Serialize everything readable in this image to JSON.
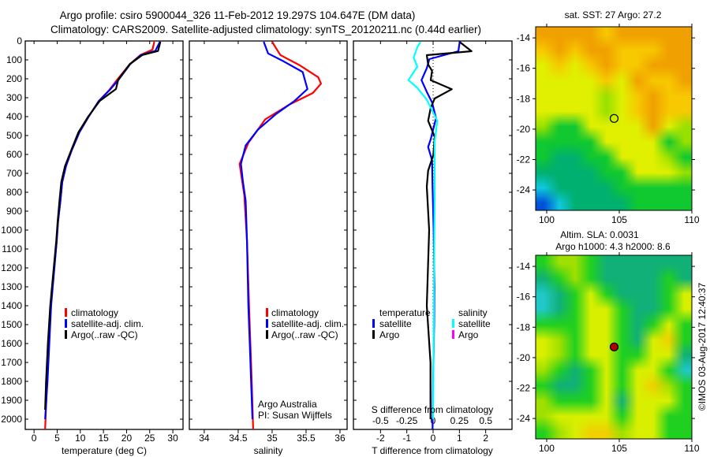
{
  "header": {
    "line1": "Argo profile: csiro 5900044_326 11-Feb-2012 19.297S 104.647E (DM data)",
    "line2": "Climatology: CARS2009. Satellite-adjusted climatology: synTS_20120211.nc (0.44d earlier)"
  },
  "chart_data": [
    {
      "type": "line",
      "id": "temperature",
      "xlabel": "temperature (deg C)",
      "ylabel": "",
      "xlim": [
        -1.9,
        32.2
      ],
      "ylim": [
        2054,
        0
      ],
      "xticks": [
        0,
        5,
        10,
        15,
        20,
        25,
        30
      ],
      "yticks": [
        0,
        100,
        200,
        300,
        400,
        500,
        600,
        700,
        800,
        900,
        1000,
        1100,
        1200,
        1300,
        1400,
        1500,
        1600,
        1700,
        1800,
        1900,
        2000
      ],
      "legend": [
        "climatology",
        "satellite-adj. clim.",
        "Argo(..raw -QC)"
      ],
      "series": [
        {
          "name": "climatology",
          "color": "#ff0000",
          "depth": [
            4,
            46,
            74,
            122,
            204,
            261,
            317,
            400,
            483,
            580,
            662,
            746,
            845,
            954,
            1058,
            1400,
            1600,
            1800,
            2054
          ],
          "values": [
            26.0,
            25.6,
            23.0,
            20.7,
            18.0,
            16.2,
            14.0,
            11.8,
            9.8,
            8.1,
            6.9,
            6.1,
            5.7,
            5.2,
            4.9,
            3.6,
            3.2,
            2.8,
            2.4
          ]
        },
        {
          "name": "satellite-adj. clim.",
          "color": "#0000ff",
          "depth": [
            4,
            53,
            74,
            122,
            204,
            261,
            317,
            400,
            483,
            580,
            662,
            746,
            845,
            954,
            1058,
            1400,
            1600,
            1800,
            2000
          ],
          "values": [
            27.2,
            26.2,
            23.1,
            20.8,
            18.3,
            16.3,
            14.0,
            11.8,
            9.8,
            8.1,
            6.9,
            6.1,
            5.7,
            5.2,
            4.9,
            3.7,
            3.3,
            2.9,
            2.4
          ]
        },
        {
          "name": "Argo(..raw -QC)",
          "color": "#000000",
          "depth": [
            4,
            53,
            74,
            122,
            204,
            254,
            317,
            400,
            483,
            580,
            662,
            746,
            845,
            954,
            1058,
            1400,
            1600,
            1800,
            1950
          ],
          "values": [
            27.3,
            26.8,
            23.4,
            20.7,
            18.2,
            17.7,
            14.2,
            11.7,
            9.6,
            8.0,
            6.7,
            5.9,
            5.5,
            5.1,
            4.8,
            3.5,
            3.0,
            2.6,
            2.4
          ]
        }
      ],
      "legend_position": "center-left"
    },
    {
      "type": "line",
      "id": "salinity",
      "xlabel": "salinity",
      "xlim": [
        33.78,
        36.105
      ],
      "ylim": [
        2054,
        0
      ],
      "xticks": [
        34,
        34.5,
        35,
        35.5,
        36
      ],
      "legend": [
        "climatology",
        "satellite-adj. clim.",
        "Argo(..raw -QC)"
      ],
      "annotation": [
        "Argo Australia",
        "PI: Susan Wijffels"
      ],
      "series": [
        {
          "name": "climatology",
          "color": "#ff0000",
          "depth": [
            4,
            74,
            129,
            192,
            226,
            275,
            337,
            414,
            539,
            650,
            817,
            1058,
            1400,
            1600,
            1800,
            2054
          ],
          "values": [
            35.0,
            35.12,
            35.41,
            35.68,
            35.72,
            35.6,
            35.25,
            34.9,
            34.65,
            34.52,
            34.59,
            34.63,
            34.66,
            34.68,
            34.7,
            34.72
          ]
        },
        {
          "name": "satellite-adj. clim.",
          "color": "#0000ff",
          "depth": [
            4,
            66,
            108,
            164,
            254,
            317,
            386,
            469,
            553,
            650,
            746,
            845,
            1058,
            1400,
            1600,
            1800,
            2000
          ],
          "values": [
            34.876,
            34.94,
            35.17,
            35.45,
            35.52,
            35.33,
            35.06,
            34.79,
            34.61,
            34.54,
            34.57,
            34.61,
            34.63,
            34.65,
            34.67,
            34.69,
            34.71
          ]
        }
      ]
    },
    {
      "type": "line",
      "id": "difference",
      "xlabel": "T difference from climatology",
      "xlabel2": "S difference from climatology",
      "xlim": [
        -3.03,
        3.0
      ],
      "ylim": [
        2054,
        0
      ],
      "xticks": [
        -2,
        -1,
        0,
        1,
        2
      ],
      "xticks2": [
        -0.5,
        -0.25,
        0,
        0.25,
        0.5
      ],
      "legend_temperature": {
        "title": "temperature",
        "items": [
          "satellite",
          "Argo"
        ]
      },
      "legend_salinity": {
        "title": "salinity",
        "items": [
          "satellite",
          "Argo"
        ]
      },
      "series": [
        {
          "name": "T satellite",
          "color": "#0000ff",
          "units": "T",
          "depth": [
            5,
            54,
            96,
            144,
            207,
            269,
            325,
            408,
            519,
            561,
            631,
            770,
            1000,
            1300,
            1500,
            1800,
            2054
          ],
          "values": [
            1.01,
            0.96,
            -0.14,
            -0.24,
            -0.44,
            -0.24,
            -0.04,
            0.11,
            -0.09,
            -0.19,
            -0.04,
            -0.02,
            0.02,
            0.05,
            0.04,
            0.0,
            -0.02
          ]
        },
        {
          "name": "T Argo",
          "color": "#000000",
          "units": "T",
          "depth": [
            5,
            54,
            75,
            124,
            158,
            207,
            255,
            304,
            353,
            422,
            506,
            603,
            686,
            770,
            1000,
            1400,
            1700,
            2000
          ],
          "values": [
            1.01,
            1.46,
            -0.24,
            -0.19,
            -0.04,
            -0.09,
            0.71,
            0.06,
            -0.09,
            -0.19,
            0.06,
            0.01,
            -0.19,
            -0.24,
            -0.15,
            -0.24,
            -0.1,
            -0.1
          ]
        },
        {
          "name": "S satellite",
          "color": "#00ffff",
          "units": "S",
          "depth": [
            5,
            33,
            88,
            136,
            207,
            248,
            311,
            422,
            533,
            770,
            1200,
            1600,
            2000
          ],
          "values": [
            -0.12,
            -0.15,
            -0.185,
            -0.15,
            -0.235,
            -0.15,
            -0.06,
            0.04,
            0.015,
            0.015,
            0.01,
            0.005,
            0.0
          ]
        },
        {
          "name": "S Argo",
          "color": "#ff00ff",
          "units": "S",
          "depth": [],
          "values": []
        }
      ]
    }
  ],
  "maps": {
    "sst": {
      "title": "sat. SST: 27 Argo: 27.2"
    },
    "sla": {
      "title1": "Altim. SLA: 0.0031",
      "title2": "Argo h1000: 4.3 h2000: 8.6"
    },
    "lon_ticks": [
      100,
      105,
      110
    ],
    "lat_ticks": [
      -14,
      -16,
      -18,
      -20,
      -22,
      -24
    ],
    "float_position": {
      "lon": 104.647,
      "lat": -19.297
    }
  },
  "footer": {
    "credit": "©IMOS 03-Aug-2017 12:40:37"
  }
}
